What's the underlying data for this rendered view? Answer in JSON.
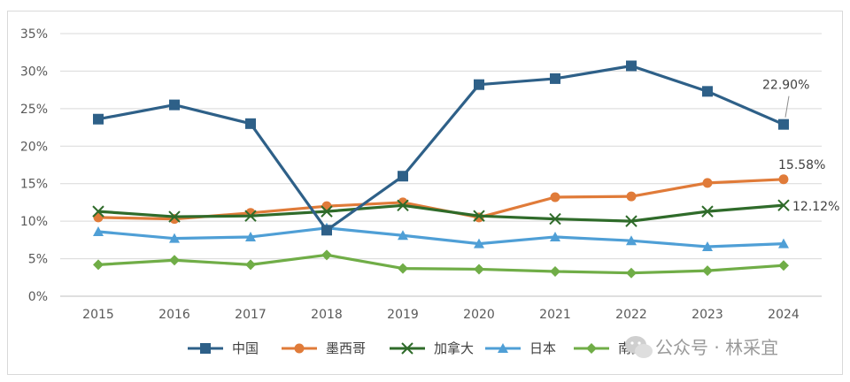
{
  "chart_data": {
    "type": "line",
    "categories": [
      "2015",
      "2016",
      "2017",
      "2018",
      "2019",
      "2020",
      "2021",
      "2022",
      "2023",
      "2024"
    ],
    "ylim": [
      0,
      35
    ],
    "yticks": [
      "0%",
      "5%",
      "10%",
      "15%",
      "20%",
      "25%",
      "30%",
      "35%"
    ],
    "grid": true,
    "legend_position": "bottom",
    "series": [
      {
        "name": "中国",
        "color": "#2e6088",
        "marker": "square",
        "values": [
          23.6,
          25.5,
          23.0,
          8.8,
          16.0,
          28.2,
          29.0,
          30.7,
          27.3,
          22.9
        ]
      },
      {
        "name": "墨西哥",
        "color": "#e07b39",
        "marker": "circle",
        "values": [
          10.5,
          10.3,
          11.1,
          12.0,
          12.5,
          10.5,
          13.2,
          13.3,
          15.1,
          15.58
        ]
      },
      {
        "name": "加拿大",
        "color": "#2f6b2a",
        "marker": "x",
        "values": [
          11.3,
          10.6,
          10.7,
          11.3,
          12.1,
          10.7,
          10.3,
          10.0,
          11.3,
          12.12
        ]
      },
      {
        "name": "日本",
        "color": "#4f9fd6",
        "marker": "triangle",
        "values": [
          8.6,
          7.7,
          7.9,
          9.1,
          8.1,
          7.0,
          7.9,
          7.4,
          6.6,
          7.0
        ]
      },
      {
        "name": "南美",
        "color": "#70ad47",
        "marker": "diamond",
        "values": [
          4.2,
          4.8,
          4.2,
          5.5,
          3.7,
          3.6,
          3.3,
          3.1,
          3.4,
          4.1
        ]
      }
    ],
    "data_labels": [
      {
        "series": 0,
        "index": 9,
        "text": "22.90%"
      },
      {
        "series": 1,
        "index": 9,
        "text": "15.58%"
      },
      {
        "series": 2,
        "index": 9,
        "text": "12.12%"
      }
    ]
  },
  "watermark": {
    "icon": "wechat-icon",
    "text": "公众号 · 林采宜"
  }
}
